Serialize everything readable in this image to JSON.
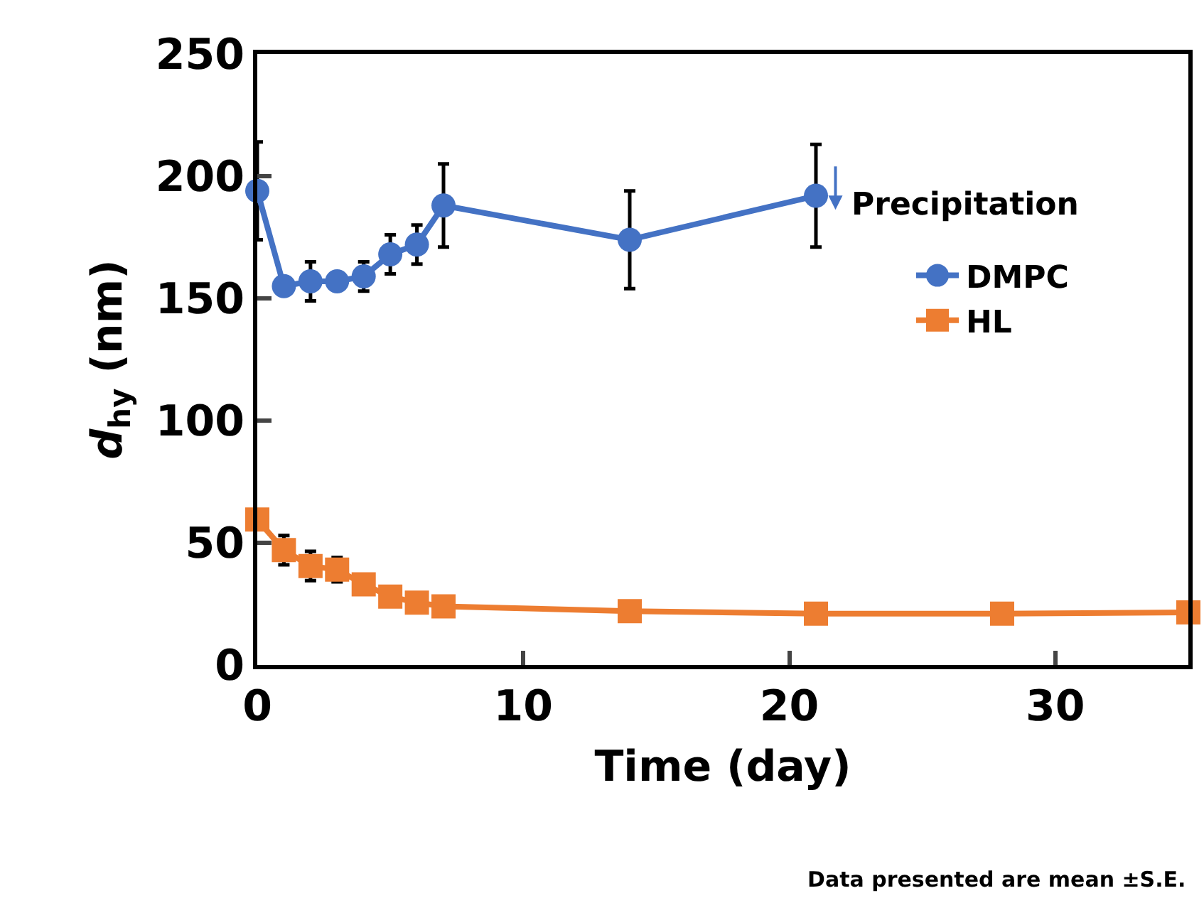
{
  "chart_data": {
    "type": "line",
    "xlabel": "Time (day)",
    "ylabel": "d$_{hy}$ (nm)",
    "xlim": [
      0,
      35
    ],
    "xticks": [
      0,
      10,
      20,
      30
    ],
    "ylim": [
      0,
      250
    ],
    "yticks": [
      0,
      50,
      100,
      150,
      200,
      250
    ],
    "legend": "right",
    "line_style": "solid",
    "series": [
      {
        "name": "DMPC",
        "color": "#4472c4",
        "marker": "circle",
        "x": [
          0,
          1,
          2,
          3,
          4,
          5,
          6,
          7,
          14,
          21
        ],
        "values": [
          194,
          155,
          157,
          157,
          159,
          168,
          172,
          188,
          174,
          192
        ],
        "errors": [
          20,
          null,
          8,
          null,
          6,
          8,
          8,
          17,
          20,
          21
        ]
      },
      {
        "name": "HL",
        "color": "#ed7d31",
        "marker": "square",
        "x": [
          0,
          1,
          2,
          3,
          4,
          5,
          6,
          7,
          14,
          21,
          28,
          35
        ],
        "values": [
          59.5,
          47,
          40.5,
          39,
          33,
          28,
          25.5,
          24,
          22,
          21,
          21,
          21.5
        ],
        "errors": [
          null,
          6,
          6,
          5,
          null,
          null,
          null,
          null,
          null,
          null,
          null,
          null
        ]
      }
    ],
    "annotations": [
      "Precipitation",
      "Data presented are mean ±S.E."
    ]
  }
}
